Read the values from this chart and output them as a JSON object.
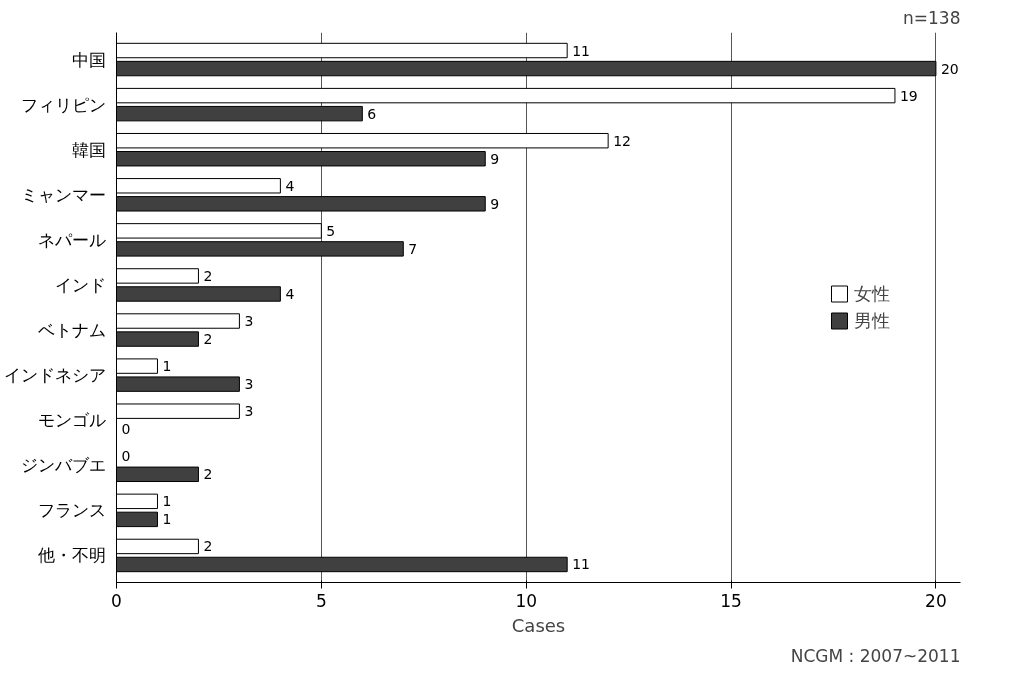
{
  "chart_data": {
    "type": "bar",
    "orientation": "horizontal",
    "categories": [
      "中国",
      "フィリピン",
      "韓国",
      "ミャンマー",
      "ネパール",
      "インド",
      "ベトナム",
      "インドネシア",
      "モンゴル",
      "ジンバブエ",
      "フランス",
      "他・不明"
    ],
    "series": [
      {
        "name": "女性",
        "color": "#ffffff",
        "values": [
          11,
          19,
          12,
          4,
          5,
          2,
          3,
          1,
          3,
          0,
          1,
          2
        ]
      },
      {
        "name": "男性",
        "color": "#404040",
        "values": [
          20,
          6,
          9,
          9,
          7,
          4,
          2,
          3,
          0,
          2,
          1,
          11
        ]
      }
    ],
    "xlim": [
      0,
      20.6
    ],
    "xticks": [
      0,
      5,
      10,
      15,
      20
    ],
    "xlabel": "Cases",
    "grid": "x",
    "legend": "right",
    "data_labels": true,
    "annotations": [
      "n=138",
      "NCGM : 2007~2011"
    ]
  }
}
